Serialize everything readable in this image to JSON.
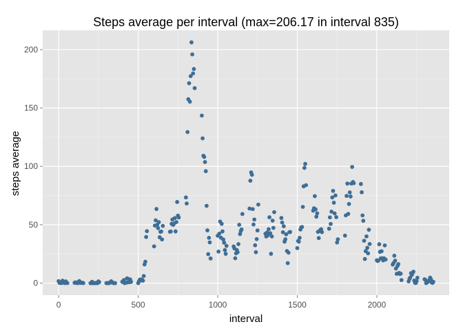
{
  "chart_data": {
    "type": "scatter",
    "title": "Steps average per interval  (max=206.17 in interval 835)",
    "xlabel": "interval",
    "ylabel": "steps average",
    "xlim": [
      -100,
      2455
    ],
    "ylim": [
      -10.3,
      216.5
    ],
    "x_ticks": [
      0,
      500,
      1000,
      1500,
      2000
    ],
    "x_tick_labels": [
      "0",
      "500",
      "1000",
      "1500",
      "2000"
    ],
    "y_ticks": [
      0,
      50,
      100,
      150,
      200
    ],
    "y_tick_labels": [
      "0",
      "50",
      "100",
      "150",
      "200"
    ],
    "grid": true,
    "legend": "none",
    "colors": {
      "panel": "#e5e5e5",
      "grid_major": "#ffffff",
      "grid_minor": "#f2f2f2",
      "point": "#3e6e96"
    },
    "points": [
      [
        0,
        1.7
      ],
      [
        5,
        0.3
      ],
      [
        10,
        0.1
      ],
      [
        15,
        0.2
      ],
      [
        20,
        0.1
      ],
      [
        25,
        2.1
      ],
      [
        30,
        0.5
      ],
      [
        35,
        0.9
      ],
      [
        40,
        0.0
      ],
      [
        45,
        1.5
      ],
      [
        50,
        0.3
      ],
      [
        55,
        0.1
      ],
      [
        100,
        0.3
      ],
      [
        105,
        0.7
      ],
      [
        110,
        0.2
      ],
      [
        115,
        0.3
      ],
      [
        120,
        0.0
      ],
      [
        125,
        1.1
      ],
      [
        130,
        1.8
      ],
      [
        135,
        0.2
      ],
      [
        140,
        0.2
      ],
      [
        145,
        0.4
      ],
      [
        150,
        0.3
      ],
      [
        155,
        0.0
      ],
      [
        200,
        0.0
      ],
      [
        205,
        0.0
      ],
      [
        210,
        1.1
      ],
      [
        215,
        0.0
      ],
      [
        220,
        0.0
      ],
      [
        225,
        0.1
      ],
      [
        230,
        0.0
      ],
      [
        235,
        0.2
      ],
      [
        240,
        0.0
      ],
      [
        245,
        0.0
      ],
      [
        250,
        1.5
      ],
      [
        255,
        0.9
      ],
      [
        300,
        0.0
      ],
      [
        305,
        0.0
      ],
      [
        310,
        0.0
      ],
      [
        315,
        0.0
      ],
      [
        320,
        0.2
      ],
      [
        325,
        0.6
      ],
      [
        330,
        1.6
      ],
      [
        335,
        0.6
      ],
      [
        340,
        0.5
      ],
      [
        345,
        0.1
      ],
      [
        350,
        0.0
      ],
      [
        355,
        0.0
      ],
      [
        400,
        1.2
      ],
      [
        405,
        0.9
      ],
      [
        410,
        2.6
      ],
      [
        415,
        0.0
      ],
      [
        420,
        0.3
      ],
      [
        425,
        0.4
      ],
      [
        430,
        4.1
      ],
      [
        435,
        0.7
      ],
      [
        440,
        3.5
      ],
      [
        445,
        0.8
      ],
      [
        450,
        3.1
      ],
      [
        455,
        1.1
      ],
      [
        500,
        0.0
      ],
      [
        505,
        1.5
      ],
      [
        510,
        3.0
      ],
      [
        515,
        2.2
      ],
      [
        520,
        3.2
      ],
      [
        525,
        2.9
      ],
      [
        530,
        2.1
      ],
      [
        535,
        6.1
      ],
      [
        540,
        16.0
      ],
      [
        545,
        18.3
      ],
      [
        550,
        39.5
      ],
      [
        555,
        44.5
      ],
      [
        600,
        31.5
      ],
      [
        605,
        49.3
      ],
      [
        610,
        53.8
      ],
      [
        615,
        63.5
      ],
      [
        620,
        50.0
      ],
      [
        625,
        47.1
      ],
      [
        630,
        52.2
      ],
      [
        635,
        39.3
      ],
      [
        640,
        44.0
      ],
      [
        645,
        44.2
      ],
      [
        650,
        37.4
      ],
      [
        655,
        49.0
      ],
      [
        700,
        44.0
      ],
      [
        705,
        44.2
      ],
      [
        710,
        50.8
      ],
      [
        715,
        54.5
      ],
      [
        720,
        49.9
      ],
      [
        725,
        51.0
      ],
      [
        730,
        55.7
      ],
      [
        735,
        44.3
      ],
      [
        740,
        52.3
      ],
      [
        745,
        69.5
      ],
      [
        750,
        57.8
      ],
      [
        755,
        56.2
      ],
      [
        800,
        73.4
      ],
      [
        805,
        68.2
      ],
      [
        810,
        129.4
      ],
      [
        815,
        157.5
      ],
      [
        820,
        171.2
      ],
      [
        825,
        155.4
      ],
      [
        830,
        177.3
      ],
      [
        835,
        206.2
      ],
      [
        840,
        195.9
      ],
      [
        845,
        179.6
      ],
      [
        850,
        183.4
      ],
      [
        855,
        167.0
      ],
      [
        900,
        143.5
      ],
      [
        905,
        124.0
      ],
      [
        910,
        109.1
      ],
      [
        915,
        108.1
      ],
      [
        920,
        103.7
      ],
      [
        925,
        95.9
      ],
      [
        930,
        66.2
      ],
      [
        935,
        45.2
      ],
      [
        940,
        24.8
      ],
      [
        945,
        38.8
      ],
      [
        950,
        34.9
      ],
      [
        955,
        21.1
      ],
      [
        1000,
        40.6
      ],
      [
        1005,
        27.0
      ],
      [
        1010,
        42.4
      ],
      [
        1015,
        52.7
      ],
      [
        1020,
        38.9
      ],
      [
        1025,
        50.8
      ],
      [
        1030,
        44.3
      ],
      [
        1035,
        37.4
      ],
      [
        1040,
        34.7
      ],
      [
        1045,
        28.3
      ],
      [
        1050,
        25.1
      ],
      [
        1055,
        31.9
      ],
      [
        1100,
        31.4
      ],
      [
        1105,
        29.7
      ],
      [
        1110,
        21.3
      ],
      [
        1115,
        25.5
      ],
      [
        1120,
        28.4
      ],
      [
        1125,
        26.5
      ],
      [
        1130,
        33.4
      ],
      [
        1135,
        50.0
      ],
      [
        1140,
        42.0
      ],
      [
        1145,
        44.6
      ],
      [
        1150,
        46.0
      ],
      [
        1155,
        59.2
      ],
      [
        1200,
        63.9
      ],
      [
        1205,
        87.7
      ],
      [
        1210,
        94.8
      ],
      [
        1215,
        92.8
      ],
      [
        1220,
        63.4
      ],
      [
        1225,
        50.2
      ],
      [
        1230,
        54.5
      ],
      [
        1235,
        32.4
      ],
      [
        1240,
        26.5
      ],
      [
        1245,
        37.7
      ],
      [
        1250,
        45.1
      ],
      [
        1255,
        67.3
      ],
      [
        1300,
        42.3
      ],
      [
        1305,
        39.9
      ],
      [
        1310,
        43.3
      ],
      [
        1315,
        41.0
      ],
      [
        1320,
        46.2
      ],
      [
        1325,
        56.4
      ],
      [
        1330,
        42.8
      ],
      [
        1335,
        25.1
      ],
      [
        1340,
        40.0
      ],
      [
        1345,
        53.5
      ],
      [
        1350,
        47.3
      ],
      [
        1355,
        60.8
      ],
      [
        1400,
        55.8
      ],
      [
        1405,
        51.9
      ],
      [
        1410,
        43.6
      ],
      [
        1415,
        48.7
      ],
      [
        1420,
        35.5
      ],
      [
        1425,
        37.5
      ],
      [
        1430,
        41.8
      ],
      [
        1435,
        27.5
      ],
      [
        1440,
        17.1
      ],
      [
        1445,
        26.1
      ],
      [
        1450,
        43.6
      ],
      [
        1455,
        43.8
      ],
      [
        1500,
        30.0
      ],
      [
        1505,
        36.1
      ],
      [
        1510,
        35.5
      ],
      [
        1515,
        38.8
      ],
      [
        1520,
        45.9
      ],
      [
        1525,
        47.8
      ],
      [
        1530,
        48.1
      ],
      [
        1535,
        65.3
      ],
      [
        1540,
        82.9
      ],
      [
        1545,
        98.7
      ],
      [
        1550,
        102.1
      ],
      [
        1555,
        83.9
      ],
      [
        1600,
        62.1
      ],
      [
        1605,
        64.1
      ],
      [
        1610,
        74.5
      ],
      [
        1615,
        63.2
      ],
      [
        1620,
        56.9
      ],
      [
        1625,
        59.8
      ],
      [
        1630,
        43.9
      ],
      [
        1635,
        38.6
      ],
      [
        1640,
        44.7
      ],
      [
        1645,
        45.5
      ],
      [
        1650,
        46.2
      ],
      [
        1655,
        43.7
      ],
      [
        1700,
        46.6
      ],
      [
        1705,
        56.3
      ],
      [
        1710,
        50.7
      ],
      [
        1715,
        61.2
      ],
      [
        1720,
        73.4
      ],
      [
        1725,
        79.0
      ],
      [
        1730,
        68.9
      ],
      [
        1735,
        59.7
      ],
      [
        1740,
        75.1
      ],
      [
        1745,
        56.5
      ],
      [
        1750,
        34.8
      ],
      [
        1755,
        37.5
      ],
      [
        1800,
        40.7
      ],
      [
        1805,
        58.0
      ],
      [
        1810,
        74.7
      ],
      [
        1815,
        85.3
      ],
      [
        1820,
        59.3
      ],
      [
        1825,
        67.8
      ],
      [
        1830,
        77.7
      ],
      [
        1835,
        74.2
      ],
      [
        1840,
        85.3
      ],
      [
        1845,
        99.5
      ],
      [
        1850,
        86.6
      ],
      [
        1855,
        85.6
      ],
      [
        1900,
        84.9
      ],
      [
        1905,
        77.8
      ],
      [
        1910,
        58.0
      ],
      [
        1915,
        53.4
      ],
      [
        1920,
        36.3
      ],
      [
        1925,
        20.7
      ],
      [
        1930,
        27.4
      ],
      [
        1935,
        40.0
      ],
      [
        1940,
        30.2
      ],
      [
        1945,
        25.5
      ],
      [
        1950,
        45.7
      ],
      [
        1955,
        33.5
      ],
      [
        2000,
        19.6
      ],
      [
        2005,
        19.0
      ],
      [
        2010,
        19.3
      ],
      [
        2015,
        33.3
      ],
      [
        2020,
        26.8
      ],
      [
        2025,
        21.2
      ],
      [
        2030,
        27.3
      ],
      [
        2035,
        21.3
      ],
      [
        2040,
        19.5
      ],
      [
        2045,
        21.3
      ],
      [
        2050,
        32.3
      ],
      [
        2055,
        20.2
      ],
      [
        2100,
        15.9
      ],
      [
        2105,
        17.2
      ],
      [
        2110,
        23.5
      ],
      [
        2115,
        19.2
      ],
      [
        2120,
        12.5
      ],
      [
        2125,
        8.0
      ],
      [
        2130,
        14.7
      ],
      [
        2135,
        16.3
      ],
      [
        2140,
        8.7
      ],
      [
        2145,
        7.8
      ],
      [
        2150,
        8.1
      ],
      [
        2155,
        2.6
      ],
      [
        2200,
        1.5
      ],
      [
        2205,
        3.7
      ],
      [
        2210,
        4.8
      ],
      [
        2215,
        8.5
      ],
      [
        2220,
        7.1
      ],
      [
        2225,
        8.7
      ],
      [
        2230,
        9.8
      ],
      [
        2235,
        2.2
      ],
      [
        2240,
        0.3
      ],
      [
        2245,
        0.1
      ],
      [
        2250,
        1.6
      ],
      [
        2255,
        4.6
      ],
      [
        2300,
        3.3
      ],
      [
        2305,
        2.8
      ],
      [
        2310,
        0.0
      ],
      [
        2315,
        0.8
      ],
      [
        2320,
        1.0
      ],
      [
        2325,
        1.6
      ],
      [
        2330,
        2.6
      ],
      [
        2335,
        4.7
      ],
      [
        2340,
        3.3
      ],
      [
        2345,
        0.6
      ],
      [
        2350,
        0.2
      ],
      [
        2355,
        1.1
      ]
    ]
  }
}
